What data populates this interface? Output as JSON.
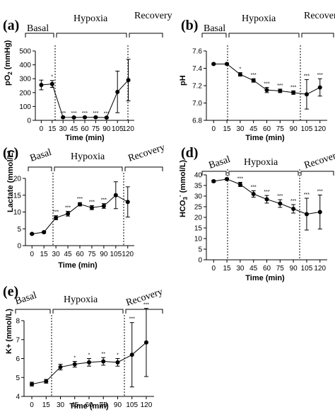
{
  "chart_data": [
    {
      "panel": "(a)",
      "type": "line",
      "ylabel_main": "pO",
      "ylabel_sub": "2",
      "ylabel_unit": "(mmHg)",
      "xlabel": "Time (min)",
      "phases": [
        "Basal",
        "Hypoxia",
        "Recovery"
      ],
      "x": [
        0,
        15,
        30,
        45,
        60,
        75,
        90,
        105,
        120
      ],
      "x_ticks": [
        "0",
        "15",
        "30",
        "45",
        "60",
        "75",
        "90",
        "105",
        "120"
      ],
      "y_ticks": [
        0,
        100,
        200,
        300,
        400,
        500
      ],
      "ylim": [
        0,
        500
      ],
      "y": [
        255,
        262,
        22,
        21,
        22,
        22,
        20,
        205,
        290
      ],
      "err": [
        35,
        25,
        4,
        4,
        4,
        4,
        4,
        150,
        150
      ],
      "marks": [
        "",
        "*",
        "***",
        "***",
        "***",
        "***",
        "***",
        "",
        ""
      ]
    },
    {
      "panel": "(b)",
      "type": "line",
      "ylabel": "pH",
      "xlabel": "Time (min)",
      "phases": [
        "Basal",
        "Hypoxia",
        "Recovery"
      ],
      "x": [
        0,
        15,
        30,
        45,
        60,
        75,
        90,
        105,
        120
      ],
      "x_ticks": [
        "0",
        "15",
        "30",
        "45",
        "60",
        "75",
        "90",
        "105",
        "120"
      ],
      "y_ticks": [
        "6.8",
        "7.0",
        "7.2",
        "7.4",
        "7.6"
      ],
      "y_tick_values": [
        6.8,
        7.0,
        7.2,
        7.4,
        7.6
      ],
      "ylim": [
        6.8,
        7.6
      ],
      "y": [
        7.45,
        7.45,
        7.33,
        7.26,
        7.15,
        7.14,
        7.12,
        7.1,
        7.18
      ],
      "err": [
        0.01,
        0.01,
        0.02,
        0.02,
        0.03,
        0.02,
        0.02,
        0.17,
        0.1
      ],
      "marks": [
        "",
        "",
        "*",
        "***",
        "***",
        "***",
        "***",
        "***",
        "***"
      ]
    },
    {
      "panel": "(c)",
      "type": "line",
      "ylabel": "Lactate (mmol/L)",
      "xlabel": "Time (min)",
      "phases": [
        "Basal",
        "Hypoxia",
        "Recovery"
      ],
      "x": [
        0,
        15,
        30,
        45,
        60,
        75,
        90,
        105,
        120
      ],
      "x_ticks": [
        "0",
        "15",
        "30",
        "45",
        "60",
        "75",
        "90",
        "105",
        "120"
      ],
      "y_ticks": [
        0,
        5,
        10,
        15,
        20
      ],
      "ylim": [
        0,
        20
      ],
      "y": [
        3.5,
        4,
        8.3,
        9.5,
        12.3,
        11.3,
        11.8,
        15,
        13
      ],
      "err": [
        0.2,
        0.3,
        0.6,
        0.7,
        0.5,
        0.6,
        0.7,
        4,
        4.5
      ],
      "marks": [
        "",
        "",
        "***",
        "***",
        "***",
        "***",
        "***",
        "",
        ""
      ]
    },
    {
      "panel": "(d)",
      "type": "line",
      "ylabel_main": "HCO",
      "ylabel_sub": "3",
      "ylabel_sup": "-",
      "ylabel_unit": "(mmol/L)",
      "xlabel": "Time (min)",
      "phases": [
        "Basal",
        "Hypoxia",
        "Recovery"
      ],
      "x": [
        0,
        15,
        30,
        45,
        60,
        75,
        90,
        105,
        120
      ],
      "x_ticks": [
        "0",
        "15",
        "30",
        "45",
        "60",
        "75",
        "90",
        "105",
        "120"
      ],
      "y_ticks": [
        0,
        5,
        10,
        15,
        20,
        25,
        30,
        35,
        40
      ],
      "ylim": [
        0,
        40
      ],
      "y": [
        37,
        38,
        35.5,
        31,
        28.5,
        26.5,
        24,
        21.5,
        22.5
      ],
      "err": [
        0.5,
        0.5,
        1,
        1.5,
        1.8,
        1.8,
        2,
        7.5,
        8
      ],
      "marks": [
        "",
        "",
        "***",
        "***",
        "***",
        "***",
        "***",
        "***",
        "***"
      ]
    },
    {
      "panel": "(e)",
      "type": "line",
      "ylabel": "K+ (mmol/L)",
      "xlabel": "Time (min)",
      "phases": [
        "Basal",
        "Hypoxia",
        "Recovery"
      ],
      "x": [
        0,
        15,
        30,
        45,
        60,
        75,
        90,
        105,
        120
      ],
      "x_ticks": [
        "0",
        "15",
        "30",
        "45",
        "60",
        "75",
        "90",
        "105",
        "120"
      ],
      "y_ticks": [
        4,
        5,
        6,
        7,
        8
      ],
      "ylim": [
        4,
        8
      ],
      "y": [
        4.65,
        4.8,
        5.55,
        5.7,
        5.8,
        5.85,
        5.8,
        6.2,
        6.85
      ],
      "err": [
        0.1,
        0.1,
        0.15,
        0.15,
        0.2,
        0.2,
        0.2,
        1.7,
        1.8
      ],
      "marks": [
        "",
        "",
        "",
        "*",
        "*",
        "**",
        "*",
        "***",
        "***"
      ]
    }
  ]
}
